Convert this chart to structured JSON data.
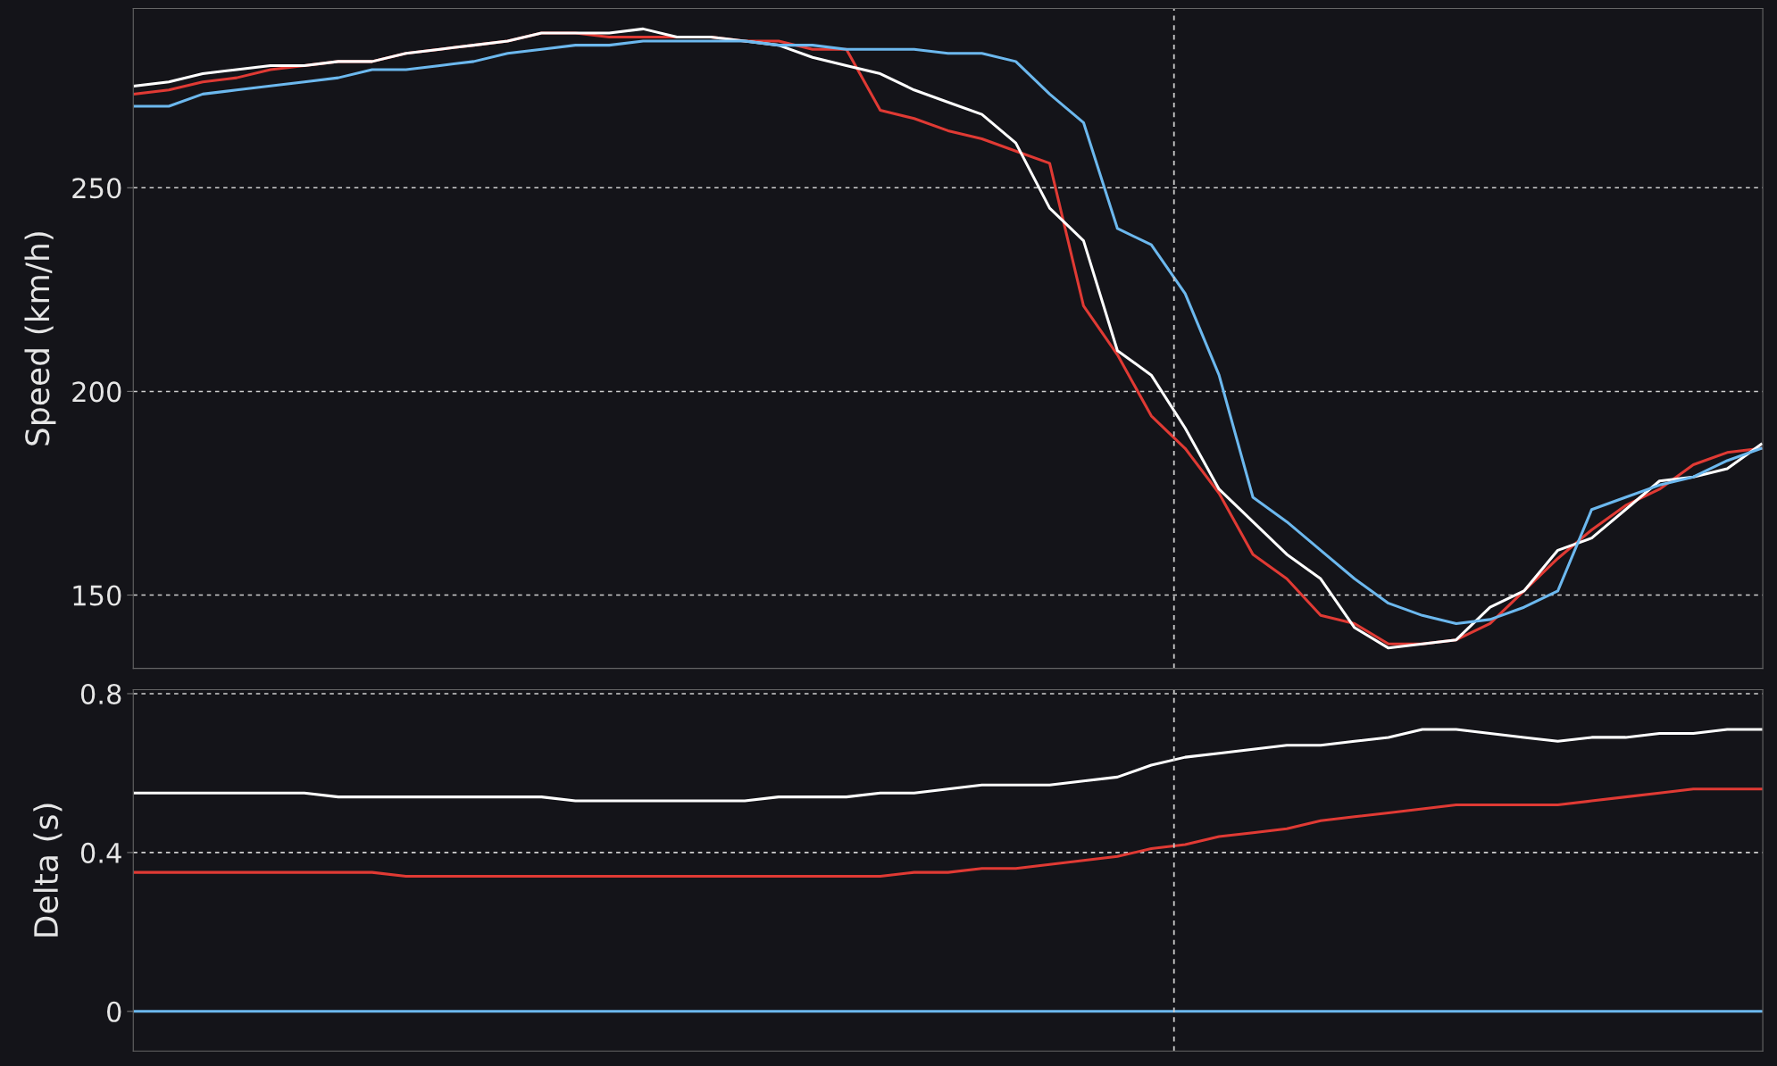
{
  "chart_data": [
    {
      "type": "line",
      "ylabel": "Speed (km/h)",
      "categories": [
        null,
        null,
        null,
        null,
        null,
        null,
        null,
        null,
        null,
        null,
        null,
        null,
        null,
        null,
        null,
        null,
        null,
        null,
        null,
        null,
        null,
        null,
        null,
        null,
        null,
        null,
        null,
        null,
        null,
        null,
        null,
        null,
        null,
        null,
        null,
        null,
        null,
        null,
        null,
        null,
        null,
        null,
        null,
        null,
        null,
        null,
        null,
        null,
        null
      ],
      "series": [
        {
          "color": "#e03a34",
          "values": [
            273,
            274,
            276,
            277,
            279,
            280,
            281,
            281,
            283,
            284,
            285,
            286,
            288,
            288,
            287,
            287,
            287,
            287,
            286,
            286,
            284,
            284,
            269,
            267,
            264,
            262,
            259,
            256,
            221,
            209,
            194,
            186,
            175,
            160,
            154,
            145,
            143,
            138,
            138,
            139,
            143,
            151,
            159,
            166,
            172,
            176,
            182,
            185,
            186
          ]
        },
        {
          "color": "#ffffff",
          "values": [
            275,
            276,
            278,
            279,
            280,
            280,
            281,
            281,
            283,
            284,
            285,
            286,
            288,
            288,
            288,
            289,
            287,
            287,
            286,
            285,
            282,
            280,
            278,
            274,
            271,
            268,
            261,
            245,
            237,
            210,
            204,
            191,
            176,
            168,
            160,
            154,
            142,
            137,
            138,
            139,
            147,
            151,
            161,
            164,
            171,
            178,
            179,
            181,
            187
          ]
        },
        {
          "color": "#6cb8ee",
          "values": [
            270,
            270,
            273,
            274,
            275,
            276,
            277,
            279,
            279,
            280,
            281,
            283,
            284,
            285,
            285,
            286,
            286,
            286,
            286,
            285,
            285,
            284,
            284,
            284,
            283,
            283,
            281,
            273,
            266,
            240,
            236,
            224,
            204,
            174,
            168,
            161,
            154,
            148,
            145,
            143,
            144,
            147,
            151,
            171,
            174,
            177,
            179,
            183,
            186
          ]
        }
      ],
      "ylim": [
        132,
        294
      ],
      "yticks": [
        150,
        200,
        250
      ],
      "grid": "y",
      "tick_labels": "y",
      "line_style": "solid"
    },
    {
      "type": "line",
      "ylabel": "Delta (s)",
      "categories": [
        null,
        null,
        null,
        null,
        null,
        null,
        null,
        null,
        null,
        null,
        null,
        null,
        null,
        null,
        null,
        null,
        null,
        null,
        null,
        null,
        null,
        null,
        null,
        null,
        null,
        null,
        null,
        null,
        null,
        null,
        null,
        null,
        null,
        null,
        null,
        null,
        null,
        null,
        null,
        null,
        null,
        null,
        null,
        null,
        null,
        null,
        null,
        null,
        null
      ],
      "series": [
        {
          "color": "#ffffff",
          "values": [
            0.55,
            0.55,
            0.55,
            0.55,
            0.55,
            0.55,
            0.54,
            0.54,
            0.54,
            0.54,
            0.54,
            0.54,
            0.54,
            0.53,
            0.53,
            0.53,
            0.53,
            0.53,
            0.53,
            0.54,
            0.54,
            0.54,
            0.55,
            0.55,
            0.56,
            0.57,
            0.57,
            0.57,
            0.58,
            0.59,
            0.62,
            0.64,
            0.65,
            0.66,
            0.67,
            0.67,
            0.68,
            0.69,
            0.71,
            0.71,
            0.7,
            0.69,
            0.68,
            0.69,
            0.69,
            0.7,
            0.7,
            0.71,
            0.71
          ]
        },
        {
          "color": "#e03a34",
          "values": [
            0.35,
            0.35,
            0.35,
            0.35,
            0.35,
            0.35,
            0.35,
            0.35,
            0.34,
            0.34,
            0.34,
            0.34,
            0.34,
            0.34,
            0.34,
            0.34,
            0.34,
            0.34,
            0.34,
            0.34,
            0.34,
            0.34,
            0.34,
            0.35,
            0.35,
            0.36,
            0.36,
            0.37,
            0.38,
            0.39,
            0.41,
            0.42,
            0.44,
            0.45,
            0.46,
            0.48,
            0.49,
            0.5,
            0.51,
            0.52,
            0.52,
            0.52,
            0.52,
            0.53,
            0.54,
            0.55,
            0.56,
            0.56,
            0.56
          ]
        },
        {
          "color": "#6cb8ee",
          "values": [
            0,
            0,
            0,
            0,
            0,
            0,
            0,
            0,
            0,
            0,
            0,
            0,
            0,
            0,
            0,
            0,
            0,
            0,
            0,
            0,
            0,
            0,
            0,
            0,
            0,
            0,
            0,
            0,
            0,
            0,
            0,
            0,
            0,
            0,
            0,
            0,
            0,
            0,
            0,
            0,
            0,
            0,
            0,
            0,
            0,
            0,
            0,
            0,
            0
          ]
        }
      ],
      "ylim": [
        -0.1,
        0.81
      ],
      "yticks": [
        0,
        0.4,
        0.8
      ],
      "grid": "y",
      "tick_labels": "y",
      "line_style": "solid"
    }
  ]
}
